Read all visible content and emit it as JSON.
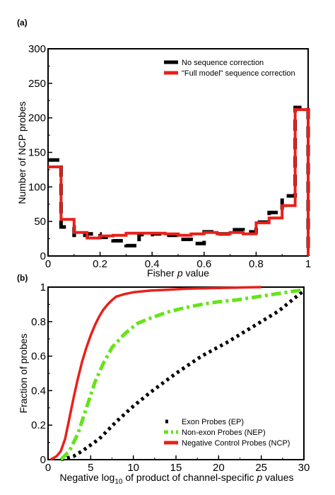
{
  "chart_data": [
    {
      "panel_label": "(a)",
      "type": "step-histogram",
      "xlabel_pre": "Fisher ",
      "xlabel_italic": "p",
      "xlabel_post": " value",
      "ylabel": "Number of NCP probes",
      "xlim": [
        0,
        1
      ],
      "ylim": [
        0,
        300
      ],
      "xticks": [
        0,
        0.2,
        0.4,
        0.6,
        0.8,
        1
      ],
      "xtick_labels": [
        "0",
        "0.2",
        "0.4",
        "0.6",
        "0.8",
        "1"
      ],
      "yticks": [
        0,
        50,
        100,
        150,
        200,
        250,
        300
      ],
      "ytick_labels": [
        "0",
        "50",
        "100",
        "150",
        "200",
        "250",
        "300"
      ],
      "bin_edges": [
        0,
        0.05,
        0.1,
        0.15,
        0.2,
        0.25,
        0.3,
        0.35,
        0.4,
        0.45,
        0.5,
        0.55,
        0.6,
        0.65,
        0.7,
        0.75,
        0.8,
        0.85,
        0.9,
        0.95,
        1.0
      ],
      "series": [
        {
          "name": "No sequence correction",
          "color": "#000000",
          "style": "dashed",
          "values": [
            139,
            42,
            30,
            32,
            27,
            22,
            15,
            31,
            32,
            30,
            24,
            18,
            35,
            32,
            38,
            35,
            49,
            63,
            87,
            215
          ]
        },
        {
          "name": "\"Full model\" sequence correction",
          "color": "#e8201a",
          "style": "solid",
          "values": [
            129,
            53,
            34,
            26,
            29,
            30,
            33,
            33,
            33,
            32,
            30,
            32,
            34,
            32,
            34,
            32,
            48,
            55,
            73,
            212
          ]
        }
      ]
    },
    {
      "panel_label": "(b)",
      "type": "line",
      "xlabel_pre": "Negative log",
      "xlabel_sub": "10",
      "xlabel_mid": " of product of channel-specific ",
      "xlabel_italic": "p",
      "xlabel_post": " values",
      "ylabel": "Fraction of probes",
      "xlim": [
        0,
        30
      ],
      "ylim": [
        0,
        1
      ],
      "xticks": [
        0,
        5,
        10,
        15,
        20,
        25,
        30
      ],
      "xtick_labels": [
        "0",
        "5",
        "10",
        "15",
        "20",
        "25",
        "30"
      ],
      "yticks": [
        0,
        0.2,
        0.4,
        0.6,
        0.8,
        1
      ],
      "ytick_labels": [
        "0",
        "0.2",
        "0.4",
        "0.6",
        "0.8",
        "1"
      ],
      "series": [
        {
          "name": "Exon Probes (EP)",
          "color": "#000000",
          "style": "dotted",
          "x": [
            1.5,
            3,
            4,
            6,
            8,
            10,
            12,
            15,
            18,
            21,
            24,
            27,
            30
          ],
          "y": [
            0,
            0.02,
            0.05,
            0.12,
            0.22,
            0.31,
            0.39,
            0.5,
            0.6,
            0.68,
            0.77,
            0.86,
            0.98
          ]
        },
        {
          "name": "Non-exon Probes (NEP)",
          "color": "#66e31a",
          "style": "dashdot",
          "x": [
            1.5,
            2.5,
            3.5,
            4.5,
            5.5,
            6.5,
            7.5,
            9,
            10.5,
            12,
            14,
            16,
            18,
            20,
            22,
            24,
            26,
            28,
            30
          ],
          "y": [
            0,
            0.05,
            0.15,
            0.3,
            0.45,
            0.56,
            0.65,
            0.73,
            0.79,
            0.82,
            0.855,
            0.88,
            0.9,
            0.915,
            0.925,
            0.94,
            0.955,
            0.97,
            0.985
          ]
        },
        {
          "name": "Negative Control Probes (NCP)",
          "color": "#e8201a",
          "style": "solid",
          "x": [
            0.3,
            1,
            1.5,
            2,
            2.5,
            3,
            3.5,
            4,
            4.5,
            5,
            5.5,
            6,
            6.5,
            7,
            7.5,
            8,
            9,
            10,
            11,
            12,
            14,
            16,
            18,
            20,
            22,
            25
          ],
          "y": [
            0,
            0.02,
            0.05,
            0.12,
            0.24,
            0.36,
            0.47,
            0.57,
            0.65,
            0.72,
            0.78,
            0.83,
            0.87,
            0.9,
            0.925,
            0.945,
            0.96,
            0.97,
            0.975,
            0.98,
            0.985,
            0.99,
            0.993,
            0.995,
            0.997,
            1.0
          ]
        }
      ]
    }
  ]
}
